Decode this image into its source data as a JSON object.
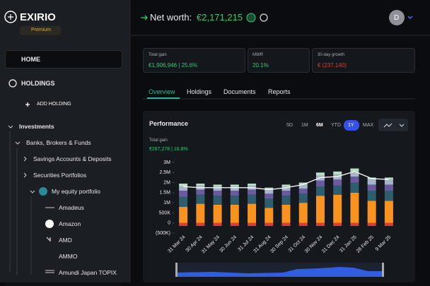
{
  "brand": {
    "name": "EXIRIO",
    "plan": "Premium"
  },
  "nav": {
    "home": "HOME",
    "holdings": "HOLDINGS",
    "add_button": "ADD HOLDING"
  },
  "tree": [
    "Investments",
    "Banks, Brokers & Funds",
    "Savings Accounts & Deposits",
    "Securities Portfolios",
    "My equity portfolio"
  ],
  "holdings": [
    "Amadeus",
    "Amazon",
    "AMD",
    "AMMO",
    "Amundi Japan TOPIX"
  ],
  "header": {
    "label": "Net worth:",
    "value": "€2,171,215",
    "avatar": "D"
  },
  "stats": [
    {
      "label": "Total gain",
      "value": "€1,906,946 | 25.6%"
    },
    {
      "label": "MWR",
      "value": "20.1%"
    },
    {
      "label": "30-day growth",
      "value": "€ (237,140)"
    }
  ],
  "tabs": [
    "Overview",
    "Holdings",
    "Documents",
    "Reports"
  ],
  "performance": {
    "title": "Performance",
    "ranges": [
      "5D",
      "1M",
      "6M",
      "YTD",
      "1Y",
      "MAX"
    ],
    "gain_label": "Total gain",
    "gain_value": "€287,278 | 16.8%"
  },
  "chart_data": {
    "type": "bar",
    "stacked": true,
    "categories": [
      "31 Mar 24",
      "30 Apr 24",
      "31 May 24",
      "30 Jun 24",
      "31 Jul 24",
      "31 Aug 24",
      "30 Sep 24",
      "31 Oct 24",
      "30 Nov 24",
      "31 Dec 24",
      "31 Jan 25",
      "28 Feb 25",
      "9 Mar 25"
    ],
    "series": [
      {
        "type": "bar",
        "color": "#e53935",
        "values": [
          -150000,
          -150000,
          -150000,
          -150000,
          -150000,
          -150000,
          -150000,
          -150000,
          -150000,
          -150000,
          -150000,
          -150000,
          -150000
        ]
      },
      {
        "type": "bar",
        "color": "#f7931e",
        "values": [
          800000,
          950000,
          900000,
          900000,
          950000,
          750000,
          900000,
          1000000,
          1350000,
          1400000,
          1500000,
          1100000,
          1100000
        ]
      },
      {
        "type": "bar",
        "color": "#2e5e6e",
        "values": [
          500000,
          450000,
          450000,
          450000,
          450000,
          450000,
          450000,
          450000,
          450000,
          450000,
          500000,
          500000,
          500000
        ]
      },
      {
        "type": "bar",
        "color": "#6a5aa0",
        "values": [
          300000,
          250000,
          250000,
          250000,
          250000,
          250000,
          250000,
          250000,
          300000,
          300000,
          300000,
          300000,
          300000
        ]
      },
      {
        "type": "bar",
        "color": "#a7b4cc",
        "values": [
          200000,
          200000,
          200000,
          200000,
          200000,
          200000,
          200000,
          200000,
          250000,
          250000,
          250000,
          250000,
          250000
        ]
      },
      {
        "type": "bar",
        "color": "#b7e0c0",
        "values": [
          150000,
          100000,
          100000,
          100000,
          100000,
          100000,
          100000,
          100000,
          150000,
          150000,
          150000,
          100000,
          100000
        ]
      },
      {
        "type": "line",
        "color": "#ffffff",
        "values": [
          1800000,
          1750000,
          1750000,
          1750000,
          1750000,
          1650000,
          1750000,
          1900000,
          2250000,
          2300000,
          2550000,
          2200000,
          2150000
        ]
      }
    ],
    "ylim": [
      -500000,
      3000000
    ],
    "yticks": [
      {
        "value": -500000,
        "label": "(500K)"
      },
      0,
      {
        "value": 500000,
        "label": "500K"
      },
      {
        "value": 1000000,
        "label": "1M"
      },
      {
        "value": 1500000,
        "label": "1.5M"
      },
      {
        "value": 2000000,
        "label": "2M"
      },
      {
        "value": 2500000,
        "label": "2.5M"
      },
      {
        "value": 3000000,
        "label": "3M"
      }
    ]
  }
}
